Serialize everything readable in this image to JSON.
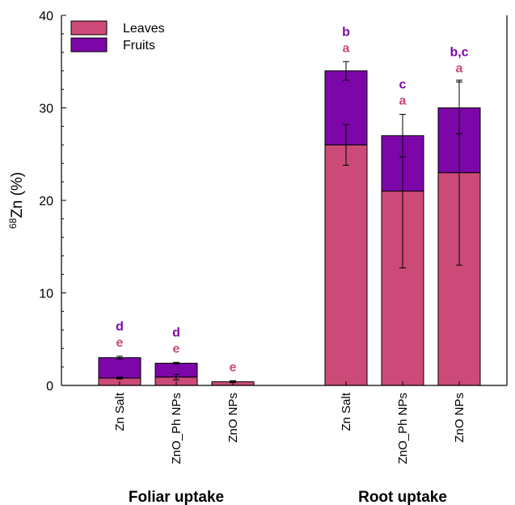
{
  "chart_data": {
    "type": "bar",
    "stacked": true,
    "ylabel_sup": "68",
    "ylabel": "Zn (%)",
    "ylim": [
      0,
      40
    ],
    "yticks": [
      0,
      10,
      20,
      30,
      40
    ],
    "legend": {
      "placement": "top-left"
    },
    "groups": [
      {
        "label": "Foliar uptake",
        "categories": [
          0,
          1,
          2
        ]
      },
      {
        "label": "Root uptake",
        "categories": [
          3,
          4,
          5
        ]
      }
    ],
    "categories": [
      "Zn Salt",
      "ZnO_Ph NPs",
      "ZnO NPs",
      "Zn Salt",
      "ZnO_Ph NPs",
      "ZnO NPs"
    ],
    "series": [
      {
        "name": "Leaves",
        "color": "#cc4a78",
        "values": [
          0.8,
          0.9,
          0.4,
          26,
          21,
          23
        ],
        "errors": [
          0.1,
          0.3,
          0.1,
          2.2,
          8.3,
          10.0
        ],
        "letters": [
          "e",
          "e",
          "e",
          "a",
          "a",
          "a"
        ]
      },
      {
        "name": "Fruits",
        "color": "#7d06a8",
        "values": [
          2.2,
          1.5,
          0.0,
          8,
          6,
          7
        ],
        "errors": [
          0.15,
          0.1,
          0.1,
          1.0,
          2.3,
          2.8
        ],
        "letters": [
          "d",
          "d",
          "",
          "b",
          "c",
          "b,c"
        ]
      }
    ]
  }
}
